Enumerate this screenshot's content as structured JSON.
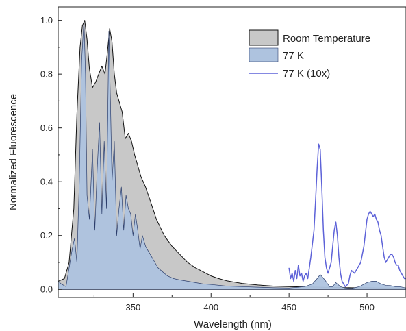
{
  "chart_data": {
    "type": "area",
    "xlabel": "Wavelength (nm)",
    "ylabel": "Normalized Fluorescence",
    "xlim": [
      302,
      525
    ],
    "ylim": [
      -0.03,
      1.05
    ],
    "xticks": [
      350,
      400,
      450,
      500
    ],
    "yticks": [
      0.0,
      0.2,
      0.4,
      0.6,
      0.8,
      1.0
    ],
    "xtick_labels": [
      "350",
      "400",
      "450",
      "500"
    ],
    "ytick_labels": [
      "0.0",
      "0.2",
      "0.4",
      "0.6",
      "0.8",
      "1.0"
    ],
    "legend_position": "top-right",
    "grid": false,
    "series": [
      {
        "name": "Room Temperature",
        "style": "filled-area",
        "fill": "#c8c8c8",
        "stroke": "#111111",
        "x": [
          302,
          306,
          309,
          312,
          314,
          316,
          317.5,
          319,
          320.5,
          322,
          324,
          326,
          328,
          330,
          332,
          333.5,
          335,
          336.5,
          338,
          339.5,
          341,
          343,
          345,
          347,
          349,
          351,
          353,
          355,
          358,
          361,
          365,
          370,
          375,
          380,
          385,
          390,
          395,
          400,
          405,
          410,
          420,
          430,
          440,
          450,
          460,
          470,
          480,
          490,
          500,
          510,
          520,
          525
        ],
        "values": [
          0.03,
          0.04,
          0.1,
          0.3,
          0.65,
          0.9,
          0.98,
          1.0,
          0.93,
          0.82,
          0.75,
          0.77,
          0.8,
          0.83,
          0.8,
          0.88,
          0.97,
          0.92,
          0.8,
          0.73,
          0.7,
          0.66,
          0.56,
          0.58,
          0.55,
          0.5,
          0.46,
          0.42,
          0.38,
          0.33,
          0.26,
          0.2,
          0.16,
          0.13,
          0.1,
          0.08,
          0.065,
          0.05,
          0.04,
          0.032,
          0.022,
          0.016,
          0.012,
          0.01,
          0.009,
          0.008,
          0.007,
          0.006,
          0.006,
          0.005,
          0.005,
          0.005
        ]
      },
      {
        "name": "77 K",
        "style": "filled-area",
        "fill": "#aec3df",
        "stroke": "#2b3d6b",
        "x": [
          302,
          304,
          307,
          309,
          311,
          312.5,
          314,
          315.5,
          317,
          318.5,
          319.5,
          320.5,
          322,
          324,
          325.5,
          327,
          328.5,
          330,
          331.5,
          333,
          334.5,
          335.5,
          336.5,
          338,
          339.5,
          341,
          342.5,
          344,
          345.5,
          347,
          348.5,
          350,
          351.5,
          353,
          354.5,
          356,
          358,
          360,
          362,
          364,
          366,
          369,
          372,
          376,
          380,
          385,
          390,
          395,
          400,
          410,
          420,
          430,
          440,
          450,
          460,
          465,
          468,
          470,
          473,
          476,
          478,
          480,
          483,
          486,
          490,
          495,
          500,
          503,
          506,
          509,
          512,
          515,
          518,
          521,
          525
        ],
        "values": [
          0.03,
          0.02,
          0.01,
          0.08,
          0.15,
          0.19,
          0.1,
          0.4,
          0.85,
          1.0,
          0.8,
          0.35,
          0.26,
          0.52,
          0.22,
          0.45,
          0.62,
          0.28,
          0.55,
          0.3,
          0.96,
          0.7,
          0.4,
          0.55,
          0.2,
          0.3,
          0.38,
          0.22,
          0.35,
          0.3,
          0.28,
          0.2,
          0.28,
          0.22,
          0.15,
          0.2,
          0.16,
          0.14,
          0.12,
          0.1,
          0.08,
          0.065,
          0.05,
          0.04,
          0.035,
          0.03,
          0.025,
          0.02,
          0.018,
          0.012,
          0.01,
          0.008,
          0.006,
          0.005,
          0.01,
          0.02,
          0.04,
          0.055,
          0.035,
          0.01,
          0.01,
          0.025,
          0.01,
          0.005,
          0.003,
          0.01,
          0.025,
          0.03,
          0.03,
          0.02,
          0.015,
          0.014,
          0.01,
          0.01,
          0.005
        ]
      },
      {
        "name": "77 K (10x)",
        "style": "line",
        "stroke": "#5d62d8",
        "x": [
          450,
          451,
          452,
          453,
          454,
          455,
          456,
          457,
          458,
          459,
          460,
          461,
          462,
          463,
          464,
          465,
          466,
          467,
          468,
          469,
          470,
          471,
          472,
          473,
          474,
          475,
          476,
          477,
          478,
          479,
          480,
          481,
          482,
          483,
          484,
          485,
          486,
          487,
          488,
          489,
          490,
          492,
          494,
          496,
          498,
          500,
          501,
          502,
          503,
          504,
          505,
          506,
          507,
          508,
          509,
          510,
          511,
          512,
          513,
          514,
          515,
          516,
          517,
          518,
          519,
          520,
          521,
          522,
          523,
          524,
          525
        ],
        "values": [
          0.08,
          0.04,
          0.06,
          0.03,
          0.07,
          0.04,
          0.09,
          0.05,
          0.06,
          0.03,
          0.05,
          0.06,
          0.04,
          0.08,
          0.12,
          0.17,
          0.22,
          0.33,
          0.45,
          0.54,
          0.52,
          0.38,
          0.22,
          0.12,
          0.08,
          0.06,
          0.08,
          0.1,
          0.16,
          0.22,
          0.25,
          0.2,
          0.12,
          0.06,
          0.03,
          0.02,
          0.01,
          0.015,
          0.02,
          0.05,
          0.07,
          0.06,
          0.08,
          0.1,
          0.16,
          0.26,
          0.28,
          0.29,
          0.28,
          0.27,
          0.28,
          0.26,
          0.25,
          0.22,
          0.2,
          0.16,
          0.12,
          0.1,
          0.11,
          0.12,
          0.13,
          0.13,
          0.12,
          0.1,
          0.09,
          0.09,
          0.07,
          0.06,
          0.05,
          0.04,
          0.04
        ]
      }
    ]
  }
}
